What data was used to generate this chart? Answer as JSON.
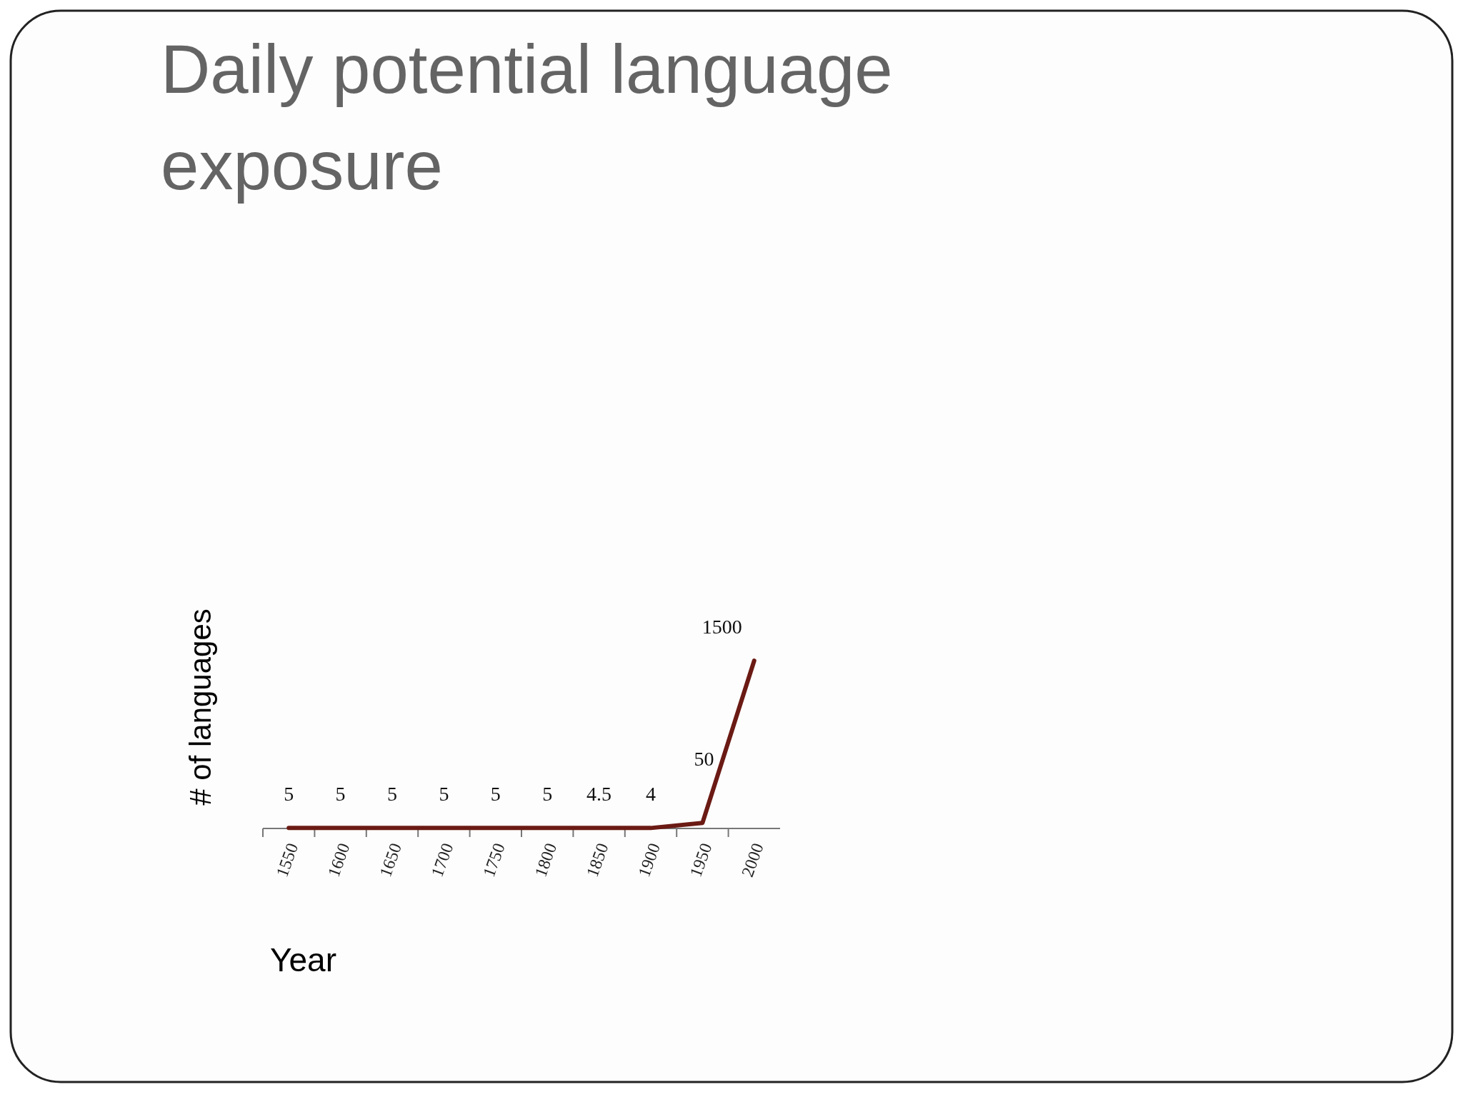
{
  "chart_data": {
    "type": "line",
    "title": "Daily potential language exposure",
    "xlabel": "Year",
    "ylabel": "# of languages",
    "categories": [
      "1550",
      "1600",
      "1650",
      "1700",
      "1750",
      "1800",
      "1850",
      "1900",
      "1950",
      "2000"
    ],
    "series": [
      {
        "color": "#6b1a14",
        "values": [
          5,
          5,
          5,
          5,
          5,
          5,
          4.5,
          4,
          50,
          1500
        ]
      }
    ],
    "data_labels": true,
    "tick_labels": "x",
    "marker": "none",
    "line_style": "solid"
  }
}
